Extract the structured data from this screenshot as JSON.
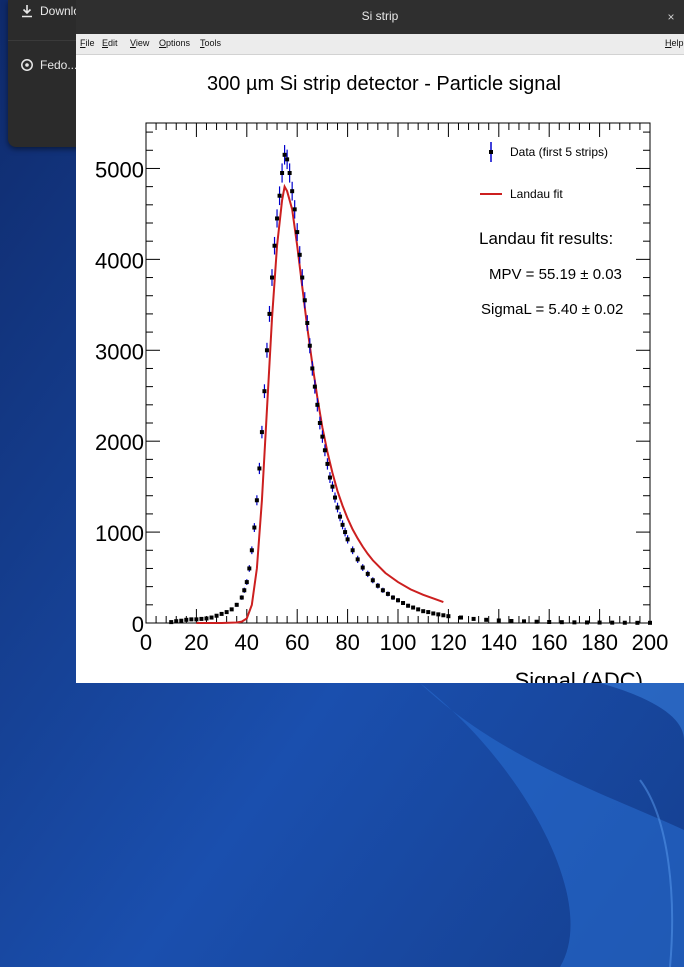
{
  "desktop": {
    "sidebar": {
      "items": [
        {
          "label": "Downlo",
          "icon": "download-icon"
        },
        {
          "label": "Fedo...",
          "icon": "disc-icon"
        }
      ]
    }
  },
  "window": {
    "title": "Si strip",
    "close_label": "×",
    "menu": [
      {
        "label": "File"
      },
      {
        "label": "Edit"
      },
      {
        "label": "View"
      },
      {
        "label": "Options"
      },
      {
        "label": "Tools"
      },
      {
        "label": "Help"
      }
    ]
  },
  "legend": {
    "data_label": "Data (first 5 strips)",
    "fit_label": "Landau fit",
    "results_title": "Landau fit results:",
    "mpv": "MPV = 55.19 ± 0.03",
    "sigma": "SigmaL = 5.40 ± 0.02"
  },
  "colors": {
    "data_marker": "#000000",
    "error_bar": "#0000cc",
    "fit_line": "#cc1f1f"
  },
  "chart_data": {
    "type": "scatter",
    "title": "300 µm Si strip detector - Particle signal",
    "xlabel": "Signal (ADC)",
    "ylabel": "",
    "xlim": [
      0,
      200
    ],
    "ylim": [
      0,
      5500
    ],
    "xticks": [
      0,
      20,
      40,
      60,
      80,
      100,
      120,
      140,
      160,
      180,
      200
    ],
    "yticks": [
      0,
      1000,
      2000,
      3000,
      4000,
      5000
    ],
    "legend_position": "top-right",
    "series": [
      {
        "name": "Data (first 5 strips)",
        "kind": "points",
        "x": [
          10,
          12,
          14,
          16,
          18,
          20,
          22,
          24,
          26,
          28,
          30,
          32,
          34,
          36,
          38,
          39,
          40,
          41,
          42,
          43,
          44,
          45,
          46,
          47,
          48,
          49,
          50,
          51,
          52,
          53,
          54,
          55,
          56,
          57,
          58,
          59,
          60,
          61,
          62,
          63,
          64,
          65,
          66,
          67,
          68,
          69,
          70,
          71,
          72,
          73,
          74,
          75,
          76,
          77,
          78,
          79,
          80,
          82,
          84,
          86,
          88,
          90,
          92,
          94,
          96,
          98,
          100,
          102,
          104,
          106,
          108,
          110,
          112,
          114,
          116,
          118,
          120,
          125,
          130,
          135,
          140,
          145,
          150,
          155,
          160,
          165,
          170,
          175,
          180,
          185,
          190,
          195,
          200
        ],
        "y": [
          10,
          20,
          25,
          35,
          40,
          40,
          45,
          50,
          60,
          80,
          100,
          120,
          150,
          200,
          280,
          360,
          450,
          600,
          800,
          1050,
          1350,
          1700,
          2100,
          2550,
          3000,
          3400,
          3800,
          4150,
          4450,
          4700,
          4950,
          5150,
          5100,
          4950,
          4750,
          4550,
          4300,
          4050,
          3800,
          3550,
          3300,
          3050,
          2800,
          2600,
          2400,
          2200,
          2050,
          1900,
          1750,
          1600,
          1500,
          1380,
          1270,
          1170,
          1080,
          1000,
          920,
          800,
          700,
          610,
          540,
          470,
          410,
          360,
          320,
          280,
          250,
          220,
          190,
          170,
          150,
          130,
          120,
          105,
          95,
          85,
          75,
          60,
          45,
          35,
          28,
          22,
          18,
          14,
          11,
          9,
          7,
          6,
          5,
          4,
          3,
          2,
          2
        ]
      },
      {
        "name": "Landau fit",
        "kind": "line",
        "x": [
          20,
          30,
          36,
          38,
          40,
          42,
          44,
          46,
          48,
          50,
          52,
          54,
          55,
          56,
          58,
          60,
          62,
          64,
          66,
          68,
          70,
          72,
          74,
          76,
          78,
          80,
          82,
          84,
          86,
          88,
          90,
          95,
          100,
          105,
          110,
          115,
          118
        ],
        "y": [
          0,
          0,
          5,
          15,
          50,
          200,
          600,
          1350,
          2350,
          3350,
          4150,
          4650,
          4800,
          4750,
          4550,
          4150,
          3700,
          3250,
          2850,
          2480,
          2150,
          1880,
          1650,
          1450,
          1290,
          1150,
          1030,
          930,
          840,
          760,
          690,
          550,
          450,
          370,
          310,
          260,
          230
        ]
      }
    ]
  }
}
